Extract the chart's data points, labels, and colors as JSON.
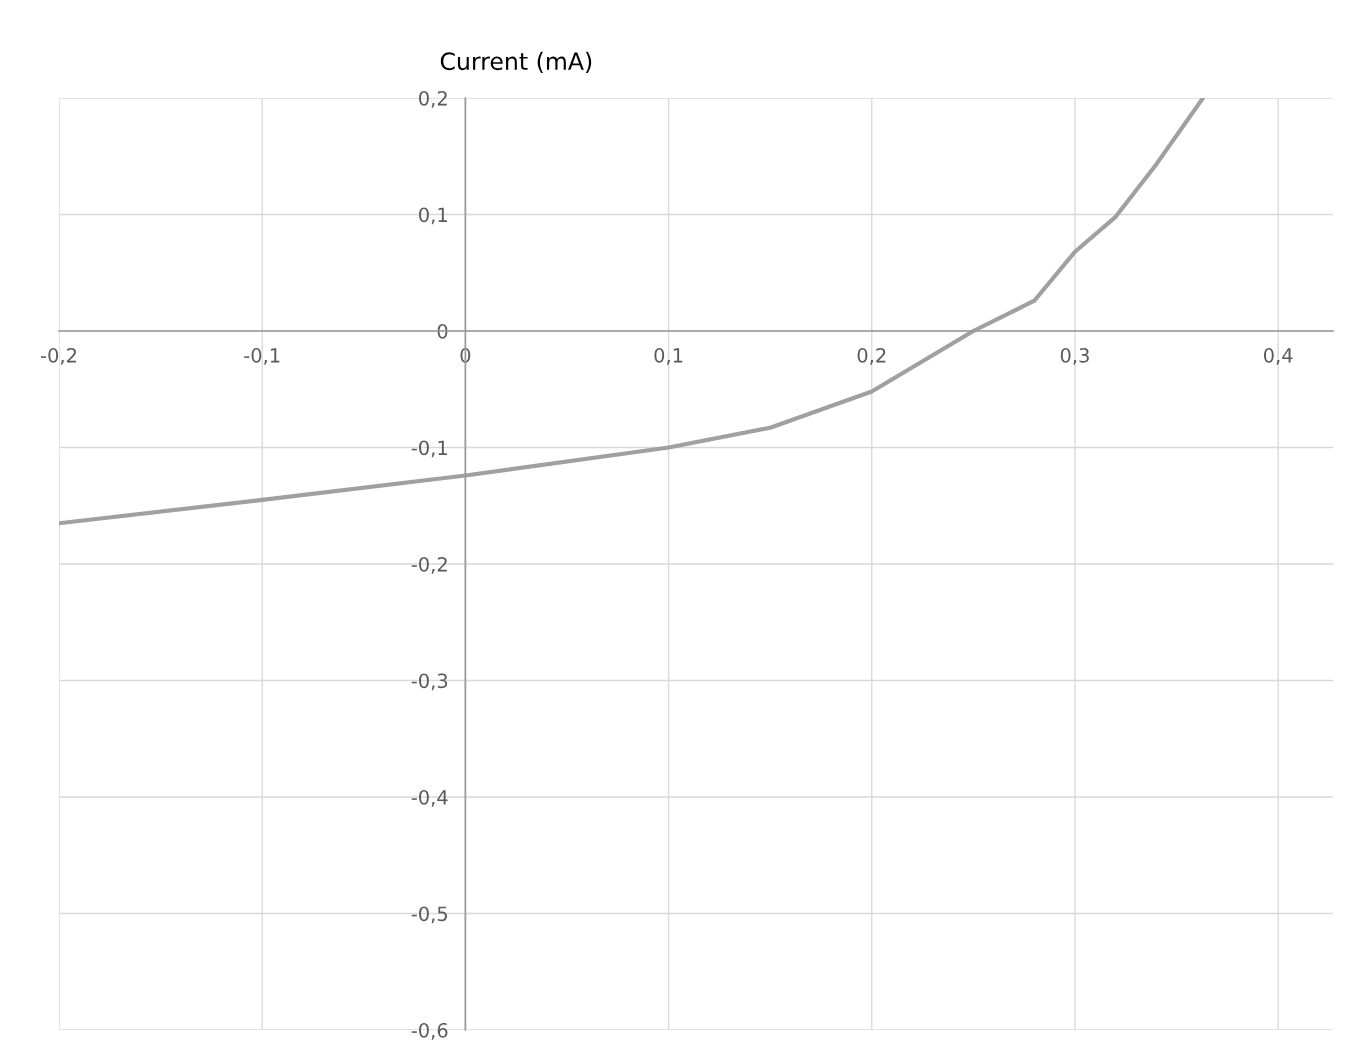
{
  "chart_data": {
    "type": "line",
    "ylabel": "Current (mA)",
    "x": [
      -0.2,
      -0.1,
      0,
      0.1,
      0.15,
      0.2,
      0.25,
      0.28,
      0.3,
      0.32,
      0.34,
      0.363
    ],
    "series": [
      {
        "color": "#a0a0a0",
        "values": [
          -0.165,
          -0.145,
          -0.124,
          -0.1,
          -0.083,
          -0.052,
          0,
          0.026,
          0.068,
          0.098,
          0.143,
          0.2
        ]
      }
    ],
    "xlim": [
      -0.2,
      0.427
    ],
    "ylim": [
      -0.6,
      0.2
    ],
    "xticks": [
      {
        "value": -0.2,
        "label": "-0,2"
      },
      {
        "value": -0.1,
        "label": "-0,1"
      },
      0,
      {
        "value": 0.1,
        "label": "0,1"
      },
      {
        "value": 0.2,
        "label": "0,2"
      },
      {
        "value": 0.3,
        "label": "0,3"
      },
      {
        "value": 0.4,
        "label": "0,4"
      }
    ],
    "yticks": [
      {
        "value": 0.2,
        "label": "0,2"
      },
      {
        "value": 0.1,
        "label": "0,1"
      },
      0,
      {
        "value": -0.1,
        "label": "-0,1"
      },
      {
        "value": -0.2,
        "label": "-0,2"
      },
      {
        "value": -0.3,
        "label": "-0,3"
      },
      {
        "value": -0.4,
        "label": "-0,4"
      },
      {
        "value": -0.5,
        "label": "-0,5"
      },
      {
        "value": -0.6,
        "label": "-0,6"
      }
    ],
    "grid": true,
    "marker": "none",
    "line_style": "solid",
    "legend": false
  }
}
